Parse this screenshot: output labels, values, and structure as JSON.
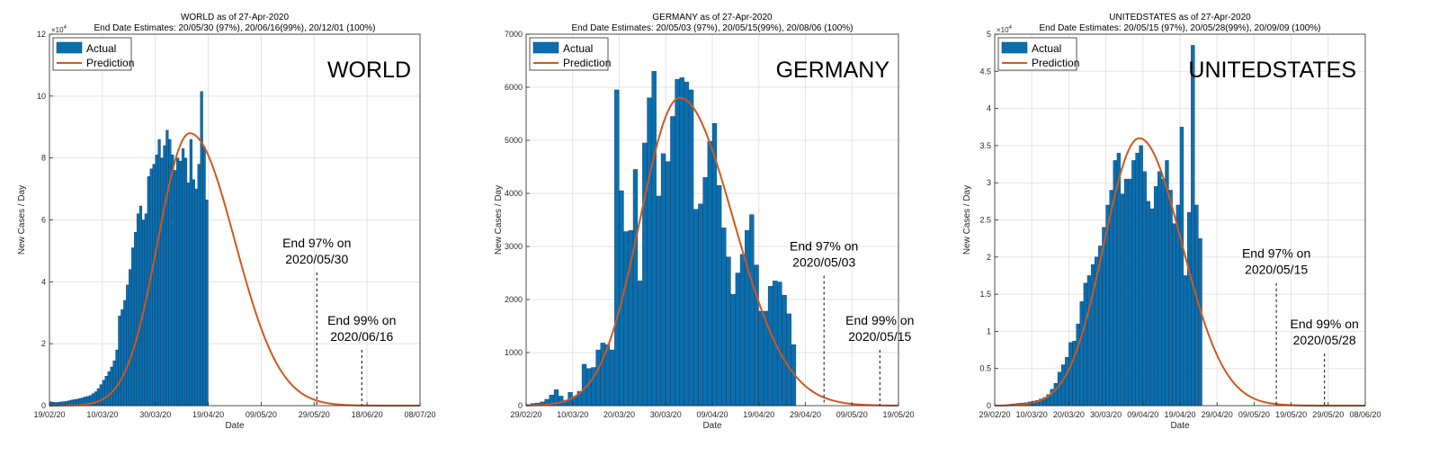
{
  "colors": {
    "bar": "#0b6fae",
    "barEdge": "#0a3a66",
    "line": "#d0581c",
    "grid": "#e3e3e3",
    "axis": "#262626"
  },
  "chart_data": [
    {
      "type": "bar",
      "name_label": "WORLD",
      "title": "WORLD as of 27-Apr-2020",
      "subtitle": "End Date Estimates: 20/05/30 (97%), 20/06/16(99%), 20/12/01 (100%)",
      "xlabel": "Date",
      "ylabel": "New Cases / Day",
      "exponent": "10",
      "exponent_power": "4",
      "grid": true,
      "legend": {
        "entries": [
          "Actual",
          "Prediction"
        ],
        "placement": "top-left"
      },
      "x_start": "2020-02-19",
      "x_end": "2020-07-08",
      "ylim": [
        0,
        120000
      ],
      "yticks": [
        0,
        20000,
        40000,
        60000,
        80000,
        100000,
        120000
      ],
      "ytick_labels": [
        "0",
        "2",
        "4",
        "6",
        "8",
        "10",
        "12"
      ],
      "xticks": [
        {
          "date": "2020-02-19",
          "label": "19/02/20"
        },
        {
          "date": "2020-03-10",
          "label": "10/03/20"
        },
        {
          "date": "2020-03-30",
          "label": "30/03/20"
        },
        {
          "date": "2020-04-19",
          "label": "19/04/20"
        },
        {
          "date": "2020-05-09",
          "label": "09/05/20"
        },
        {
          "date": "2020-05-29",
          "label": "29/05/20"
        },
        {
          "date": "2020-06-18",
          "label": "18/06/20"
        },
        {
          "date": "2020-07-08",
          "label": "08/07/20"
        }
      ],
      "bars_start": "2020-02-19",
      "values": [
        1200,
        1100,
        1000,
        1100,
        1200,
        1300,
        1400,
        1600,
        1800,
        2000,
        2100,
        2300,
        2500,
        2800,
        3000,
        3300,
        3900,
        4500,
        5500,
        6800,
        8200,
        9500,
        11000,
        12500,
        14500,
        18000,
        29000,
        31000,
        34000,
        39000,
        44000,
        51000,
        56000,
        62000,
        64500,
        60000,
        62000,
        74000,
        76500,
        78000,
        81000,
        86000,
        80000,
        84000,
        89000,
        86000,
        81000,
        76000,
        80000,
        79000,
        83000,
        80000,
        72000,
        86000,
        73000,
        70000,
        78000,
        101500,
        83500,
        66500
      ],
      "prediction": {
        "peak_date": "2020-04-12",
        "peak": 88000,
        "sigma_left": 12,
        "sigma_right": 17
      },
      "annotations": [
        {
          "line1": "End 97% on",
          "line2": "2020/05/30",
          "date": "2020-05-30",
          "value": 43000
        },
        {
          "line1": "End 99% on",
          "line2": "2020/06/16",
          "date": "2020-06-16",
          "value": 18000
        }
      ]
    },
    {
      "type": "bar",
      "name_label": "GERMANY",
      "title": "GERMANY as of 27-Apr-2020",
      "subtitle": "End Date Estimates: 20/05/03 (97%), 20/05/15(99%), 20/08/06 (100%)",
      "xlabel": "Date",
      "ylabel": "New Cases / Day",
      "exponent": "",
      "exponent_power": "",
      "grid": true,
      "legend": {
        "entries": [
          "Actual",
          "Prediction"
        ],
        "placement": "top-left"
      },
      "x_start": "2020-02-29",
      "x_end": "2020-05-19",
      "ylim": [
        0,
        7000
      ],
      "yticks": [
        0,
        1000,
        2000,
        3000,
        4000,
        5000,
        6000,
        7000
      ],
      "ytick_labels": [
        "0",
        "1000",
        "2000",
        "3000",
        "4000",
        "5000",
        "6000",
        "7000"
      ],
      "xticks": [
        {
          "date": "2020-02-29",
          "label": "29/02/20"
        },
        {
          "date": "2020-03-10",
          "label": "10/03/20"
        },
        {
          "date": "2020-03-20",
          "label": "20/03/20"
        },
        {
          "date": "2020-03-30",
          "label": "30/03/20"
        },
        {
          "date": "2020-04-09",
          "label": "09/04/20"
        },
        {
          "date": "2020-04-19",
          "label": "19/04/20"
        },
        {
          "date": "2020-04-29",
          "label": "29/04/20"
        },
        {
          "date": "2020-05-09",
          "label": "09/05/20"
        },
        {
          "date": "2020-05-19",
          "label": "19/05/20"
        }
      ],
      "bars_start": "2020-02-29",
      "values": [
        20,
        40,
        50,
        70,
        120,
        200,
        300,
        180,
        100,
        250,
        170,
        270,
        780,
        700,
        720,
        1050,
        1180,
        1150,
        1050,
        5950,
        4050,
        3280,
        3300,
        4450,
        2350,
        4950,
        5800,
        6300,
        3950,
        4750,
        4600,
        5450,
        6150,
        6180,
        6100,
        5950,
        3700,
        3800,
        4300,
        4980,
        5320,
        4150,
        3350,
        2800,
        2100,
        2500,
        2850,
        3300,
        3600,
        2650,
        1780,
        1780,
        2250,
        2350,
        2330,
        2080,
        1730,
        1150
      ],
      "prediction": {
        "peak_date": "2020-04-02",
        "peak": 5800,
        "sigma_left": 8.5,
        "sigma_right": 11.5
      },
      "annotations": [
        {
          "line1": "End 97% on",
          "line2": "2020/05/03",
          "date": "2020-05-03",
          "value": 2450
        },
        {
          "line1": "End 99% on",
          "line2": "2020/05/15",
          "date": "2020-05-15",
          "value": 1050
        }
      ]
    },
    {
      "type": "bar",
      "name_label": "UNITEDSTATES",
      "title": "UNITEDSTATES as of 27-Apr-2020",
      "subtitle": "End Date Estimates: 20/05/15 (97%), 20/05/28(99%), 20/09/09 (100%)",
      "xlabel": "Date",
      "ylabel": "New Cases / Day",
      "exponent": "10",
      "exponent_power": "4",
      "grid": true,
      "legend": {
        "entries": [
          "Actual",
          "Prediction"
        ],
        "placement": "top-left"
      },
      "x_start": "2020-02-29",
      "x_end": "2020-06-08",
      "ylim": [
        0,
        50000
      ],
      "yticks": [
        0,
        5000,
        10000,
        15000,
        20000,
        25000,
        30000,
        35000,
        40000,
        45000,
        50000
      ],
      "ytick_labels": [
        "0",
        "0.5",
        "1",
        "1.5",
        "2",
        "2.5",
        "3",
        "3.5",
        "4",
        "4.5",
        "5"
      ],
      "xticks": [
        {
          "date": "2020-02-29",
          "label": "29/02/20"
        },
        {
          "date": "2020-03-10",
          "label": "10/03/20"
        },
        {
          "date": "2020-03-20",
          "label": "20/03/20"
        },
        {
          "date": "2020-03-30",
          "label": "30/03/20"
        },
        {
          "date": "2020-04-09",
          "label": "09/04/20"
        },
        {
          "date": "2020-04-19",
          "label": "19/04/20"
        },
        {
          "date": "2020-04-29",
          "label": "29/04/20"
        },
        {
          "date": "2020-05-09",
          "label": "09/05/20"
        },
        {
          "date": "2020-05-19",
          "label": "19/05/20"
        },
        {
          "date": "2020-05-29",
          "label": "29/05/20"
        },
        {
          "date": "2020-06-08",
          "label": "08/06/20"
        }
      ],
      "bars_start": "2020-02-29",
      "values": [
        50,
        80,
        100,
        150,
        200,
        250,
        300,
        350,
        400,
        500,
        600,
        700,
        900,
        1100,
        1500,
        2200,
        3000,
        4500,
        5500,
        6500,
        8500,
        8700,
        11000,
        14000,
        16500,
        17500,
        19000,
        20000,
        21500,
        24000,
        27000,
        29000,
        33000,
        34000,
        28500,
        30500,
        30500,
        33000,
        34000,
        35000,
        31500,
        27500,
        26500,
        29500,
        31500,
        30500,
        33000,
        29000,
        24500,
        27000,
        37500,
        17500,
        26000,
        48500,
        27000,
        22500
      ],
      "prediction": {
        "peak_date": "2020-04-08",
        "peak": 36000,
        "sigma_left": 9.5,
        "sigma_right": 11.5
      },
      "annotations": [
        {
          "line1": "End 97% on",
          "line2": "2020/05/15",
          "date": "2020-05-15",
          "value": 16500
        },
        {
          "line1": "End 99% on",
          "line2": "2020/05/28",
          "date": "2020-05-28",
          "value": 7000
        }
      ]
    }
  ]
}
